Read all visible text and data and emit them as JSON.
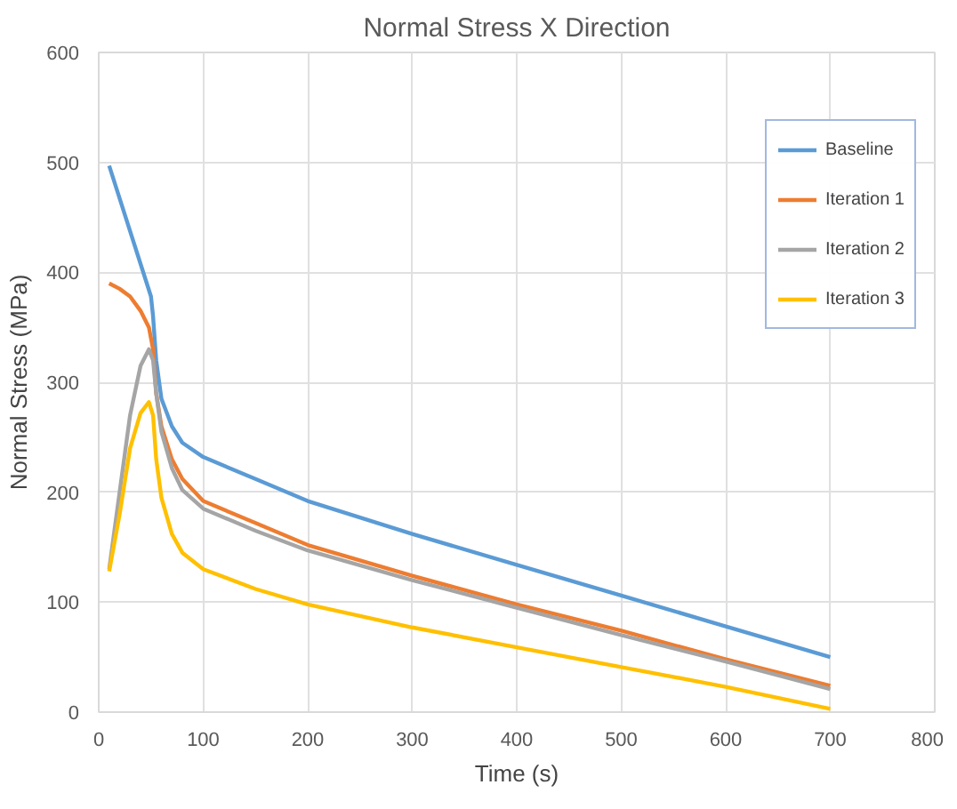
{
  "chart_data": {
    "type": "line",
    "title": "Normal Stress X Direction",
    "xlabel": "Time (s)",
    "ylabel": "Normal Stress (MPa)",
    "xlim": [
      0,
      800
    ],
    "xticks": [
      0,
      100,
      200,
      300,
      400,
      500,
      600,
      700,
      800
    ],
    "ylim": [
      0,
      600
    ],
    "yticks": [
      0,
      100,
      200,
      300,
      400,
      500,
      600
    ],
    "grid": true,
    "legend": "right",
    "marker": "none",
    "line_style": "solid",
    "series": [
      {
        "name": "Baseline",
        "color": "#5b9bd5",
        "x": [
          10,
          50,
          52,
          55,
          60,
          70,
          80,
          100,
          150,
          200,
          300,
          400,
          500,
          600,
          700
        ],
        "values": [
          497,
          378,
          360,
          320,
          285,
          260,
          245,
          232,
          212,
          192,
          162,
          134,
          106,
          78,
          50
        ]
      },
      {
        "name": "Iteration 1",
        "color": "#ed7d31",
        "x": [
          10,
          20,
          30,
          40,
          48,
          52,
          55,
          60,
          70,
          80,
          100,
          150,
          200,
          300,
          400,
          500,
          600,
          700
        ],
        "values": [
          390,
          385,
          378,
          365,
          350,
          330,
          290,
          260,
          230,
          212,
          192,
          172,
          152,
          124,
          98,
          74,
          48,
          24
        ]
      },
      {
        "name": "Iteration 2",
        "color": "#a5a5a5",
        "x": [
          10,
          20,
          30,
          40,
          48,
          52,
          55,
          60,
          70,
          80,
          100,
          150,
          200,
          300,
          400,
          500,
          600,
          700
        ],
        "values": [
          130,
          200,
          270,
          315,
          330,
          320,
          290,
          255,
          222,
          202,
          185,
          165,
          147,
          120,
          95,
          70,
          46,
          21
        ]
      },
      {
        "name": "Iteration 3",
        "color": "#ffc000",
        "x": [
          10,
          20,
          30,
          40,
          48,
          52,
          55,
          60,
          70,
          80,
          100,
          150,
          200,
          300,
          400,
          500,
          600,
          700
        ],
        "values": [
          128,
          180,
          240,
          272,
          282,
          270,
          230,
          195,
          162,
          145,
          130,
          112,
          98,
          77,
          59,
          41,
          23,
          3
        ]
      }
    ]
  }
}
